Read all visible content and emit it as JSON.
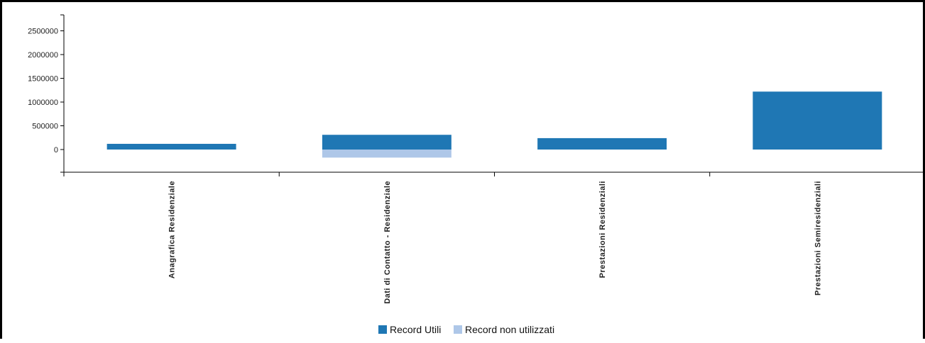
{
  "chart_data": {
    "type": "bar",
    "stacked": true,
    "categories": [
      "Anagrafica Residenziale",
      "Dati di Contatto - Residenziale",
      "Prestazioni Residenziali",
      "Prestazioni Semiresidenziali"
    ],
    "series": [
      {
        "name": "Record Utili",
        "color": "#1f77b4",
        "values": [
          120000,
          310000,
          240000,
          1220000
        ]
      },
      {
        "name": "Record non utilizzati",
        "color": "#aec7e8",
        "values": [
          0,
          -170000,
          0,
          0
        ]
      }
    ],
    "yticks": [
      0,
      500000,
      1000000,
      1500000,
      2000000,
      2500000
    ],
    "ylim": [
      -450000,
      2750000
    ],
    "legend_position": "bottom-center",
    "title": "",
    "xlabel": "",
    "ylabel": ""
  }
}
